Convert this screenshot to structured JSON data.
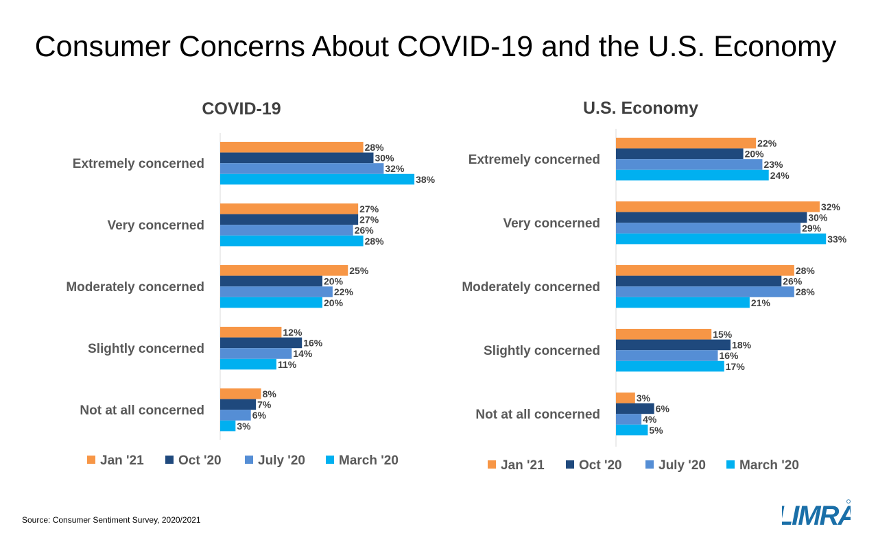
{
  "title": "Consumer Concerns About COVID-19 and the U.S. Economy",
  "source": "Source: Consumer Sentiment Survey, 2020/2021",
  "logo_text": "LIMRA",
  "colors": {
    "Jan '21": "#F79646",
    "Oct '20": "#1F497D",
    "July '20": "#558ED5",
    "March '20": "#00B0F0"
  },
  "chart_data": [
    {
      "type": "bar",
      "orientation": "horizontal",
      "title": "COVID-19",
      "categories": [
        "Extremely concerned",
        "Very concerned",
        "Moderately concerned",
        "Slightly concerned",
        "Not at all concerned"
      ],
      "series": [
        {
          "name": "Jan '21",
          "values": [
            28,
            27,
            25,
            12,
            8
          ]
        },
        {
          "name": "Oct '20",
          "values": [
            30,
            27,
            20,
            16,
            7
          ]
        },
        {
          "name": "July '20",
          "values": [
            32,
            26,
            22,
            14,
            6
          ]
        },
        {
          "name": "March '20",
          "values": [
            38,
            28,
            20,
            11,
            3
          ]
        }
      ],
      "value_suffix": "%",
      "legend": "bottom",
      "grid": false
    },
    {
      "type": "bar",
      "orientation": "horizontal",
      "title": "U.S. Economy",
      "categories": [
        "Extremely concerned",
        "Very concerned",
        "Moderately concerned",
        "Slightly concerned",
        "Not at all concerned"
      ],
      "series": [
        {
          "name": "Jan '21",
          "values": [
            22,
            32,
            28,
            15,
            3
          ]
        },
        {
          "name": "Oct '20",
          "values": [
            20,
            30,
            26,
            18,
            6
          ]
        },
        {
          "name": "July '20",
          "values": [
            23,
            29,
            28,
            16,
            4
          ]
        },
        {
          "name": "March '20",
          "values": [
            24,
            33,
            21,
            17,
            5
          ]
        }
      ],
      "value_suffix": "%",
      "legend": "bottom",
      "grid": false
    }
  ]
}
